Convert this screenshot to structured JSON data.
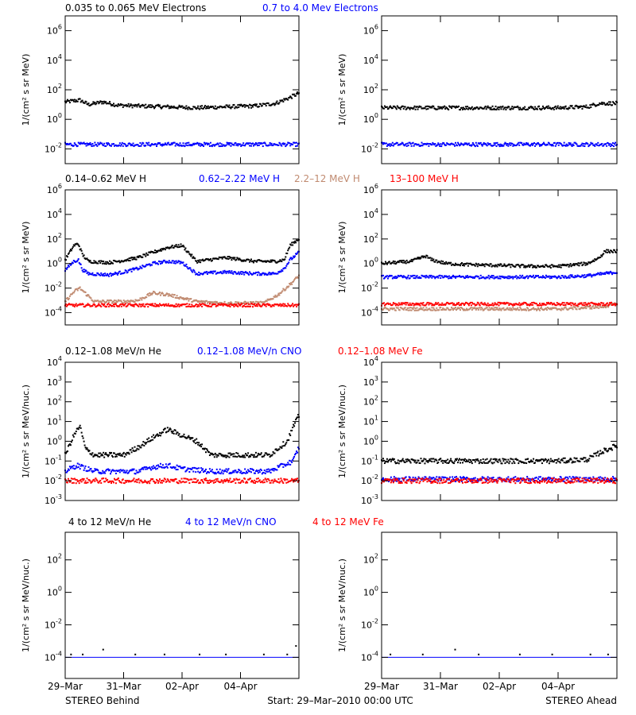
{
  "colors": {
    "black": "#000000",
    "blue": "#0000ff",
    "tan": "#c08a70",
    "red": "#ff0000"
  },
  "panels": [
    {
      "header": [
        {
          "text": "0.035 to 0.065 MeV Electrons",
          "color": "#000000"
        },
        {
          "text": "0.7 to 4.0 Mev Electrons",
          "color": "#0000ff"
        }
      ],
      "ylabel": "1/(cm² s sr MeV)",
      "scale": "log",
      "ylim": [
        0.001,
        10000000
      ],
      "ticks": [
        {
          "mant": "10",
          "exp": "6",
          "v": 1000000
        },
        {
          "mant": "10",
          "exp": "4",
          "v": 10000
        },
        {
          "mant": "10",
          "exp": "2",
          "v": 100
        },
        {
          "mant": "10",
          "exp": "0",
          "v": 1
        },
        {
          "mant": "10",
          "exp": "-2",
          "v": 0.01
        }
      ]
    },
    {
      "header": [
        {
          "text": "0.14–0.62 MeV H",
          "color": "#000000"
        },
        {
          "text": "0.62–2.22 MeV H",
          "color": "#0000ff"
        },
        {
          "text": "2.2–12 MeV H",
          "color": "#c08a70"
        },
        {
          "text": "13–100 MeV H",
          "color": "#ff0000"
        }
      ],
      "ylabel": "1/(cm² s sr MeV)",
      "scale": "log",
      "ylim": [
        1e-05,
        1000000
      ],
      "ticks": [
        {
          "mant": "10",
          "exp": "6",
          "v": 1000000
        },
        {
          "mant": "10",
          "exp": "4",
          "v": 10000
        },
        {
          "mant": "10",
          "exp": "2",
          "v": 100
        },
        {
          "mant": "10",
          "exp": "0",
          "v": 1
        },
        {
          "mant": "10",
          "exp": "-2",
          "v": 0.01
        },
        {
          "mant": "10",
          "exp": "-4",
          "v": 0.0001
        }
      ]
    },
    {
      "header": [
        {
          "text": "0.12–1.08 MeV/n He",
          "color": "#000000"
        },
        {
          "text": "0.12–1.08 MeV/n CNO",
          "color": "#0000ff"
        },
        {
          "text": "0.12–1.08 MeV Fe",
          "color": "#ff0000"
        }
      ],
      "ylabel": "1/(cm² s sr MeV/nuc.)",
      "scale": "log",
      "ylim": [
        0.001,
        10000
      ],
      "ticks": [
        {
          "mant": "10",
          "exp": "4",
          "v": 10000
        },
        {
          "mant": "10",
          "exp": "3",
          "v": 1000
        },
        {
          "mant": "10",
          "exp": "2",
          "v": 100
        },
        {
          "mant": "10",
          "exp": "1",
          "v": 10
        },
        {
          "mant": "10",
          "exp": "0",
          "v": 1
        },
        {
          "mant": "10",
          "exp": "-1",
          "v": 0.1
        },
        {
          "mant": "10",
          "exp": "-2",
          "v": 0.01
        },
        {
          "mant": "10",
          "exp": "-3",
          "v": 0.001
        }
      ]
    },
    {
      "header": [
        {
          "text": "4 to 12 MeV/n He",
          "color": "#000000"
        },
        {
          "text": "4 to 12 MeV/n CNO",
          "color": "#0000ff"
        },
        {
          "text": "4 to 12 MeV Fe",
          "color": "#ff0000"
        }
      ],
      "ylabel": "1/(cm² s sr MeV/nuc.)",
      "scale": "log",
      "ylim": [
        5e-06,
        5000
      ],
      "ticks": [
        {
          "mant": "10",
          "exp": "2",
          "v": 100
        },
        {
          "mant": "10",
          "exp": "0",
          "v": 1
        },
        {
          "mant": "10",
          "exp": "-2",
          "v": 0.01
        },
        {
          "mant": "10",
          "exp": "-4",
          "v": 0.0001
        }
      ]
    }
  ],
  "xaxis": {
    "range_days": [
      0,
      8
    ],
    "ticks": [
      {
        "label": "29–Mar",
        "day": 0
      },
      {
        "label": "31–Mar",
        "day": 2
      },
      {
        "label": "02–Apr",
        "day": 4
      },
      {
        "label": "04–Apr",
        "day": 6
      }
    ]
  },
  "footer": {
    "left": "STEREO Behind",
    "center": "Start: 29–Mar–2010 00:00 UTC",
    "right": "STEREO Ahead"
  },
  "chart_data": [
    {
      "type": "scatter",
      "panel": 0,
      "spacecraft": "STEREO Behind",
      "x_units": "days since start",
      "series": [
        {
          "name": "0.035 to 0.065 MeV Electrons",
          "color": "#000000",
          "x": [
            0,
            0.5,
            0.8,
            1.3,
            1.8,
            2.5,
            3.5,
            4.5,
            5.5,
            6.5,
            7.2,
            7.7,
            8
          ],
          "y": [
            15,
            20,
            10,
            15,
            9,
            8,
            7,
            6,
            7,
            8,
            12,
            30,
            60
          ]
        },
        {
          "name": "0.7 to 4.0 Mev Electrons",
          "color": "#0000ff",
          "x": [
            0,
            2,
            4,
            6,
            8
          ],
          "y": [
            0.02,
            0.02,
            0.02,
            0.02,
            0.02
          ]
        }
      ]
    },
    {
      "type": "scatter",
      "panel": 0,
      "spacecraft": "STEREO Ahead",
      "x_units": "days since start",
      "series": [
        {
          "name": "0.035 to 0.065 MeV Electrons",
          "color": "#000000",
          "x": [
            0,
            2,
            4,
            6,
            7,
            7.4,
            8
          ],
          "y": [
            6,
            6,
            6,
            6,
            7,
            12,
            12
          ]
        },
        {
          "name": "0.7 to 4.0 Mev Electrons",
          "color": "#0000ff",
          "x": [
            0,
            2,
            4,
            6,
            8
          ],
          "y": [
            0.02,
            0.02,
            0.02,
            0.02,
            0.02
          ]
        }
      ]
    },
    {
      "type": "scatter",
      "panel": 1,
      "spacecraft": "STEREO Behind",
      "x_units": "days since start",
      "series": [
        {
          "name": "0.14–0.62 MeV H",
          "color": "#000000",
          "x": [
            0,
            0.3,
            0.45,
            0.6,
            0.8,
            1.5,
            2,
            2.5,
            3,
            3.5,
            4,
            4.5,
            5.5,
            6.5,
            7.2,
            7.5,
            7.7,
            8
          ],
          "y": [
            2,
            30,
            40,
            5,
            1.5,
            1.2,
            1.8,
            3,
            8,
            20,
            30,
            1.5,
            3,
            1.5,
            1.5,
            2,
            30,
            100
          ]
        },
        {
          "name": "0.62–2.22 MeV H",
          "color": "#0000ff",
          "x": [
            0,
            0.3,
            0.45,
            0.6,
            0.8,
            1.5,
            2,
            2.5,
            3,
            3.5,
            4,
            4.5,
            5.5,
            6.5,
            7.2,
            7.5,
            7.7,
            8
          ],
          "y": [
            0.3,
            1.5,
            2,
            0.3,
            0.15,
            0.12,
            0.2,
            0.4,
            1,
            1.5,
            1.2,
            0.15,
            0.2,
            0.15,
            0.15,
            0.4,
            2,
            8
          ]
        },
        {
          "name": "2.2–12 MeV H",
          "color": "#c08a70",
          "x": [
            0,
            0.3,
            0.5,
            1,
            2,
            2.5,
            3,
            3.5,
            4.5,
            5.5,
            6.8,
            7.3,
            7.7,
            8
          ],
          "y": [
            0.0008,
            0.005,
            0.01,
            0.0008,
            0.0008,
            0.001,
            0.004,
            0.003,
            0.0008,
            0.0006,
            0.0006,
            0.003,
            0.02,
            0.1
          ]
        },
        {
          "name": "13–100 MeV H",
          "color": "#ff0000",
          "x": [
            0,
            2,
            4,
            6,
            8
          ],
          "y": [
            0.0004,
            0.0004,
            0.0004,
            0.0004,
            0.0004
          ]
        }
      ]
    },
    {
      "type": "scatter",
      "panel": 1,
      "spacecraft": "STEREO Ahead",
      "x_units": "days since start",
      "series": [
        {
          "name": "0.14–0.62 MeV H",
          "color": "#000000",
          "x": [
            0,
            1,
            1.5,
            1.7,
            2.2,
            3,
            4,
            5,
            6,
            7,
            7.4,
            7.6,
            8
          ],
          "y": [
            1,
            1.5,
            4,
            2,
            1,
            0.8,
            0.7,
            0.6,
            0.6,
            1,
            3,
            10,
            10
          ]
        },
        {
          "name": "0.62–2.22 MeV H",
          "color": "#0000ff",
          "x": [
            0,
            2,
            4,
            6,
            7,
            8
          ],
          "y": [
            0.08,
            0.08,
            0.08,
            0.08,
            0.1,
            0.2
          ]
        },
        {
          "name": "2.2–12 MeV H",
          "color": "#c08a70",
          "x": [
            0,
            2,
            4,
            6,
            7.5,
            8
          ],
          "y": [
            0.0002,
            0.0002,
            0.0002,
            0.0002,
            0.0003,
            0.0005
          ]
        },
        {
          "name": "13–100 MeV H",
          "color": "#ff0000",
          "x": [
            0,
            2,
            4,
            6,
            8
          ],
          "y": [
            0.0005,
            0.0005,
            0.0005,
            0.0005,
            0.0005
          ]
        }
      ]
    },
    {
      "type": "scatter",
      "panel": 2,
      "spacecraft": "STEREO Behind",
      "x_units": "days since start",
      "series": [
        {
          "name": "0.12–1.08 MeV/n He",
          "color": "#000000",
          "x": [
            0,
            0.3,
            0.5,
            0.7,
            1,
            2,
            2.5,
            3,
            3.5,
            4,
            4.5,
            5,
            6,
            7,
            7.6,
            7.8,
            8
          ],
          "y": [
            0.2,
            2,
            6,
            0.4,
            0.2,
            0.2,
            0.5,
            1.5,
            4,
            2,
            1,
            0.2,
            0.2,
            0.2,
            1,
            5,
            20
          ]
        },
        {
          "name": "0.12–1.08 MeV/n CNO",
          "color": "#0000ff",
          "x": [
            0,
            0.4,
            1,
            2.5,
            3,
            3.5,
            4,
            5,
            7,
            7.8,
            8
          ],
          "y": [
            0.03,
            0.06,
            0.03,
            0.03,
            0.05,
            0.06,
            0.04,
            0.03,
            0.03,
            0.1,
            0.5
          ]
        },
        {
          "name": "0.12–1.08 MeV Fe",
          "color": "#ff0000",
          "x": [
            0,
            2,
            4,
            6,
            8
          ],
          "y": [
            0.01,
            0.01,
            0.01,
            0.01,
            0.01
          ]
        }
      ]
    },
    {
      "type": "scatter",
      "panel": 2,
      "spacecraft": "STEREO Ahead",
      "x_units": "days since start",
      "series": [
        {
          "name": "0.12–1.08 MeV/n He",
          "color": "#000000",
          "x": [
            0,
            2,
            4,
            6,
            7,
            7.5,
            8
          ],
          "y": [
            0.1,
            0.1,
            0.1,
            0.1,
            0.12,
            0.3,
            0.6
          ]
        },
        {
          "name": "0.12–1.08 MeV/n CNO",
          "color": "#0000ff",
          "x": [
            0,
            2,
            4,
            6,
            8
          ],
          "y": [
            0.012,
            0.012,
            0.012,
            0.012,
            0.012
          ]
        },
        {
          "name": "0.12–1.08 MeV Fe",
          "color": "#ff0000",
          "x": [
            0,
            2,
            4,
            6,
            8
          ],
          "y": [
            0.01,
            0.01,
            0.01,
            0.01,
            0.01
          ]
        }
      ]
    },
    {
      "type": "scatter",
      "panel": 3,
      "spacecraft": "STEREO Behind",
      "x_units": "days since start",
      "series": [
        {
          "name": "4 to 12 MeV/n He",
          "color": "#000000",
          "x": [
            0.2,
            0.6,
            1.3,
            2.4,
            3.4,
            4.6,
            5.5,
            6.8,
            7.6,
            7.9
          ],
          "y": [
            0.00015,
            0.00015,
            0.0003,
            0.00015,
            0.00015,
            0.00015,
            0.00015,
            0.00015,
            0.00015,
            0.0005
          ]
        },
        {
          "name": "4 to 12 MeV/n CNO",
          "color": "#0000ff",
          "x": [
            0,
            8
          ],
          "y": [
            0.0001,
            0.0001
          ]
        }
      ]
    },
    {
      "type": "scatter",
      "panel": 3,
      "spacecraft": "STEREO Ahead",
      "x_units": "days since start",
      "series": [
        {
          "name": "4 to 12 MeV/n He",
          "color": "#000000",
          "x": [
            0.3,
            1.4,
            2.5,
            3.3,
            4.7,
            5.8,
            7.1,
            7.7
          ],
          "y": [
            0.00015,
            0.00015,
            0.0003,
            0.00015,
            0.00015,
            0.00015,
            0.00015,
            0.00015
          ]
        },
        {
          "name": "4 to 12 MeV/n CNO",
          "color": "#0000ff",
          "x": [
            0,
            8
          ],
          "y": [
            0.0001,
            0.0001
          ]
        }
      ]
    }
  ]
}
